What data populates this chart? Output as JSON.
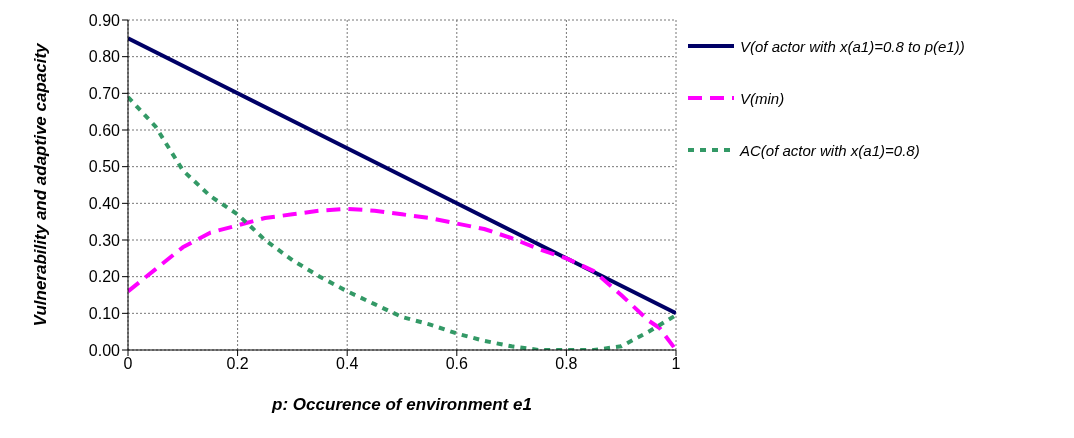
{
  "chart_data": {
    "type": "line",
    "xlabel": "p: Occurence of environment e1",
    "ylabel": "Vulnerability and adaptive capacity",
    "xlim": [
      0,
      1
    ],
    "xticks": [
      0,
      0.2,
      0.4,
      0.6,
      0.8,
      1
    ],
    "ylim": [
      0,
      0.9
    ],
    "yticks": [
      {
        "value": 0,
        "label": "0.00"
      },
      {
        "value": 0.1,
        "label": "0.10"
      },
      {
        "value": 0.2,
        "label": "0.20"
      },
      {
        "value": 0.3,
        "label": "0.30"
      },
      {
        "value": 0.4,
        "label": "0.40"
      },
      {
        "value": 0.5,
        "label": "0.50"
      },
      {
        "value": 0.6,
        "label": "0.60"
      },
      {
        "value": 0.7,
        "label": "0.70"
      },
      {
        "value": 0.8,
        "label": "0.80"
      },
      {
        "value": 0.9,
        "label": "0.90"
      }
    ],
    "grid": true,
    "legend": "right",
    "marker": "none",
    "series": [
      {
        "name": "V(of actor with x(a1)=0.8 to p(e1))",
        "color": "#000066",
        "line_style": "solid",
        "x": [
          0,
          0.1,
          0.2,
          0.3,
          0.4,
          0.5,
          0.6,
          0.7,
          0.8,
          0.9,
          1
        ],
        "values": [
          0.85,
          0.775,
          0.7,
          0.625,
          0.55,
          0.475,
          0.4,
          0.325,
          0.25,
          0.175,
          0.1
        ]
      },
      {
        "name": "V(min)",
        "color": "#ff00ff",
        "line_style": "dashed",
        "x": [
          0,
          0.05,
          0.1,
          0.15,
          0.2,
          0.25,
          0.3,
          0.35,
          0.4,
          0.45,
          0.5,
          0.55,
          0.6,
          0.65,
          0.7,
          0.75,
          0.8,
          0.85,
          0.9,
          0.95,
          0.97,
          1
        ],
        "values": [
          0.16,
          0.22,
          0.28,
          0.32,
          0.34,
          0.36,
          0.37,
          0.38,
          0.385,
          0.38,
          0.37,
          0.36,
          0.345,
          0.33,
          0.305,
          0.275,
          0.25,
          0.215,
          0.15,
          0.08,
          0.06,
          0
        ]
      },
      {
        "name": "AC(of actor with x(a1)=0.8)",
        "color": "#339966",
        "line_style": "dotted",
        "x": [
          0,
          0.05,
          0.1,
          0.15,
          0.2,
          0.25,
          0.3,
          0.35,
          0.4,
          0.45,
          0.5,
          0.55,
          0.6,
          0.65,
          0.7,
          0.75,
          0.8,
          0.85,
          0.9,
          0.95,
          1
        ],
        "values": [
          0.69,
          0.61,
          0.49,
          0.42,
          0.37,
          0.3,
          0.245,
          0.2,
          0.16,
          0.125,
          0.09,
          0.07,
          0.045,
          0.025,
          0.01,
          0,
          0,
          0,
          0.01,
          0.05,
          0.095
        ]
      }
    ]
  }
}
